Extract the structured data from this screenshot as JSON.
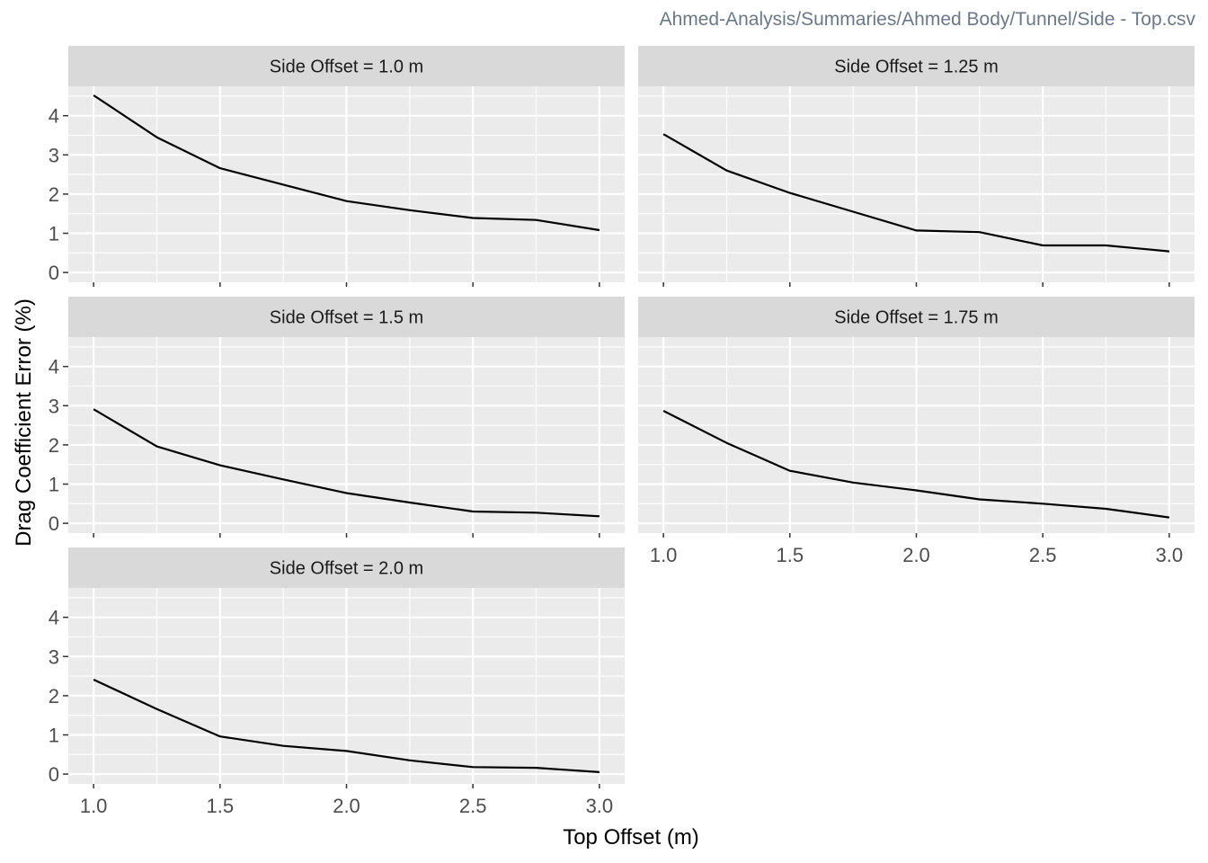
{
  "caption": "Ahmed-Analysis/Summaries/Ahmed Body/Tunnel/Side - Top.csv",
  "chart_data": {
    "type": "line",
    "facet_strip_prefix": "Side Offset = ",
    "xlabel": "Top Offset (m)",
    "ylabel": "Drag Coefficient Error (%)",
    "xlim": [
      0.9,
      3.1
    ],
    "ylim": [
      -0.25,
      4.75
    ],
    "x_ticks": [
      1.0,
      1.5,
      2.0,
      2.5,
      3.0
    ],
    "x_tick_labels": [
      "1.0",
      "1.5",
      "2.0",
      "2.5",
      "3.0"
    ],
    "y_ticks": [
      0,
      1,
      2,
      3,
      4
    ],
    "y_tick_labels": [
      "0",
      "1",
      "2",
      "3",
      "4"
    ],
    "grid": true,
    "x": [
      1.0,
      1.25,
      1.5,
      1.75,
      2.0,
      2.25,
      2.5,
      2.75,
      3.0
    ],
    "panels": [
      {
        "strip": "Side Offset =  1.0 m",
        "values": [
          4.52,
          3.45,
          2.66,
          2.24,
          1.82,
          1.59,
          1.39,
          1.34,
          1.08
        ]
      },
      {
        "strip": "Side Offset =  1.25 m",
        "values": [
          3.53,
          2.6,
          2.03,
          1.55,
          1.07,
          1.03,
          0.69,
          0.69,
          0.54
        ]
      },
      {
        "strip": "Side Offset =  1.5 m",
        "values": [
          2.91,
          1.96,
          1.48,
          1.12,
          0.77,
          0.53,
          0.3,
          0.27,
          0.18
        ]
      },
      {
        "strip": "Side Offset =  1.75 m",
        "values": [
          2.87,
          2.05,
          1.34,
          1.04,
          0.84,
          0.61,
          0.5,
          0.37,
          0.15
        ]
      },
      {
        "strip": "Side Offset =  2.0 m",
        "values": [
          2.41,
          1.66,
          0.96,
          0.72,
          0.59,
          0.35,
          0.18,
          0.16,
          0.05
        ]
      }
    ]
  }
}
